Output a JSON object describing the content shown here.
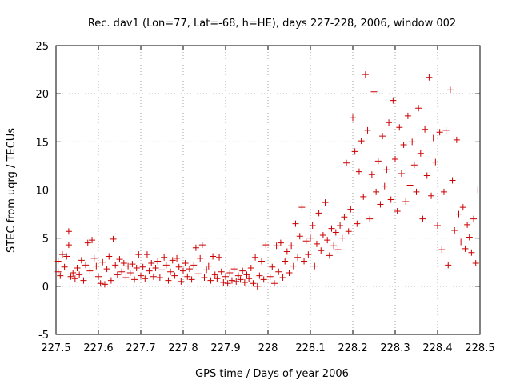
{
  "chart_data": {
    "type": "scatter",
    "title": "Rec. dav1 (Lon=77, Lat=-68, h=HE), days 227-228, 2006, window 002",
    "xlabel": "GPS time / Days of year 2006",
    "ylabel": "STEC from uqrg / TECUs",
    "xlim": [
      227.5,
      228.5
    ],
    "ylim": [
      -5,
      25
    ],
    "xticks": [
      227.5,
      227.6,
      227.7,
      227.8,
      227.9,
      228,
      228.1,
      228.2,
      228.3,
      228.4,
      228.5
    ],
    "xtick_labels": [
      "227.5",
      "227.6",
      "227.7",
      "227.8",
      "227.9",
      "228",
      "228.1",
      "228.2",
      "228.3",
      "228.4",
      "228.5"
    ],
    "yticks": [
      -5,
      0,
      5,
      10,
      15,
      20,
      25
    ],
    "ytick_labels": [
      "-5",
      "0",
      "5",
      "10",
      "15",
      "20",
      "25"
    ],
    "grid": true,
    "marker": "plus",
    "color": "#cc0000",
    "points": [
      [
        227.505,
        1.5
      ],
      [
        227.505,
        2.6
      ],
      [
        227.51,
        1.1
      ],
      [
        227.515,
        3.3
      ],
      [
        227.52,
        2.0
      ],
      [
        227.525,
        3.1
      ],
      [
        227.53,
        5.7
      ],
      [
        227.53,
        4.3
      ],
      [
        227.535,
        1.0
      ],
      [
        227.54,
        1.4
      ],
      [
        227.545,
        0.8
      ],
      [
        227.55,
        1.9
      ],
      [
        227.555,
        1.2
      ],
      [
        227.56,
        2.7
      ],
      [
        227.565,
        0.6
      ],
      [
        227.57,
        2.2
      ],
      [
        227.575,
        4.5
      ],
      [
        227.58,
        1.6
      ],
      [
        227.585,
        4.8
      ],
      [
        227.59,
        2.9
      ],
      [
        227.595,
        2.1
      ],
      [
        227.6,
        1.0
      ],
      [
        227.605,
        0.3
      ],
      [
        227.61,
        2.5
      ],
      [
        227.615,
        0.2
      ],
      [
        227.62,
        1.8
      ],
      [
        227.625,
        3.1
      ],
      [
        227.63,
        0.6
      ],
      [
        227.635,
        4.9
      ],
      [
        227.64,
        2.2
      ],
      [
        227.645,
        1.2
      ],
      [
        227.65,
        2.8
      ],
      [
        227.655,
        1.5
      ],
      [
        227.66,
        2.4
      ],
      [
        227.665,
        0.9
      ],
      [
        227.67,
        2.1
      ],
      [
        227.675,
        1.4
      ],
      [
        227.68,
        2.3
      ],
      [
        227.685,
        0.7
      ],
      [
        227.69,
        1.9
      ],
      [
        227.695,
        3.3
      ],
      [
        227.7,
        1.1
      ],
      [
        227.705,
        2.0
      ],
      [
        227.71,
        0.8
      ],
      [
        227.715,
        3.3
      ],
      [
        227.72,
        1.6
      ],
      [
        227.725,
        2.4
      ],
      [
        227.73,
        1.0
      ],
      [
        227.735,
        1.9
      ],
      [
        227.74,
        2.6
      ],
      [
        227.745,
        0.9
      ],
      [
        227.75,
        1.7
      ],
      [
        227.755,
        3.0
      ],
      [
        227.76,
        2.2
      ],
      [
        227.765,
        0.6
      ],
      [
        227.77,
        1.5
      ],
      [
        227.775,
        2.7
      ],
      [
        227.78,
        1.1
      ],
      [
        227.785,
        2.9
      ],
      [
        227.79,
        2.0
      ],
      [
        227.795,
        0.5
      ],
      [
        227.8,
        1.6
      ],
      [
        227.805,
        2.4
      ],
      [
        227.81,
        1.0
      ],
      [
        227.815,
        1.8
      ],
      [
        227.82,
        0.7
      ],
      [
        227.825,
        2.2
      ],
      [
        227.83,
        4.0
      ],
      [
        227.835,
        1.3
      ],
      [
        227.84,
        2.9
      ],
      [
        227.845,
        4.3
      ],
      [
        227.85,
        0.9
      ],
      [
        227.855,
        1.7
      ],
      [
        227.86,
        2.1
      ],
      [
        227.865,
        0.6
      ],
      [
        227.87,
        3.1
      ],
      [
        227.875,
        1.2
      ],
      [
        227.88,
        0.8
      ],
      [
        227.885,
        3.0
      ],
      [
        227.89,
        1.5
      ],
      [
        227.895,
        0.4
      ],
      [
        227.9,
        1.0
      ],
      [
        227.905,
        0.3
      ],
      [
        227.91,
        1.4
      ],
      [
        227.915,
        0.6
      ],
      [
        227.92,
        1.8
      ],
      [
        227.925,
        0.5
      ],
      [
        227.93,
        1.1
      ],
      [
        227.935,
        0.7
      ],
      [
        227.94,
        1.6
      ],
      [
        227.945,
        0.4
      ],
      [
        227.95,
        1.2
      ],
      [
        227.955,
        0.8
      ],
      [
        227.96,
        1.9
      ],
      [
        227.965,
        0.3
      ],
      [
        227.97,
        3.0
      ],
      [
        227.975,
        0.0
      ],
      [
        227.98,
        1.1
      ],
      [
        227.985,
        2.6
      ],
      [
        227.99,
        0.7
      ],
      [
        227.995,
        4.3
      ],
      [
        228.005,
        1.0
      ],
      [
        228.01,
        2.0
      ],
      [
        228.015,
        0.3
      ],
      [
        228.02,
        4.2
      ],
      [
        228.025,
        1.5
      ],
      [
        228.03,
        4.5
      ],
      [
        228.035,
        0.9
      ],
      [
        228.04,
        2.6
      ],
      [
        228.045,
        3.6
      ],
      [
        228.05,
        1.4
      ],
      [
        228.055,
        4.2
      ],
      [
        228.06,
        2.1
      ],
      [
        228.065,
        6.5
      ],
      [
        228.07,
        3.0
      ],
      [
        228.075,
        5.2
      ],
      [
        228.08,
        8.2
      ],
      [
        228.085,
        2.6
      ],
      [
        228.09,
        4.7
      ],
      [
        228.095,
        3.3
      ],
      [
        228.1,
        5.0
      ],
      [
        228.105,
        6.3
      ],
      [
        228.11,
        2.1
      ],
      [
        228.115,
        4.4
      ],
      [
        228.12,
        7.6
      ],
      [
        228.125,
        3.7
      ],
      [
        228.13,
        5.3
      ],
      [
        228.135,
        8.7
      ],
      [
        228.14,
        4.8
      ],
      [
        228.145,
        3.2
      ],
      [
        228.15,
        6.0
      ],
      [
        228.155,
        4.2
      ],
      [
        228.16,
        5.6
      ],
      [
        228.165,
        3.8
      ],
      [
        228.17,
        6.3
      ],
      [
        228.175,
        5.0
      ],
      [
        228.18,
        7.2
      ],
      [
        228.185,
        12.8
      ],
      [
        228.19,
        5.7
      ],
      [
        228.195,
        8.0
      ],
      [
        228.2,
        17.5
      ],
      [
        228.205,
        14.0
      ],
      [
        228.21,
        6.5
      ],
      [
        228.215,
        11.9
      ],
      [
        228.22,
        15.1
      ],
      [
        228.225,
        9.3
      ],
      [
        228.23,
        22.0
      ],
      [
        228.235,
        16.2
      ],
      [
        228.24,
        7.0
      ],
      [
        228.245,
        11.6
      ],
      [
        228.25,
        20.2
      ],
      [
        228.255,
        9.8
      ],
      [
        228.26,
        13.0
      ],
      [
        228.265,
        8.5
      ],
      [
        228.27,
        15.6
      ],
      [
        228.275,
        10.4
      ],
      [
        228.28,
        12.1
      ],
      [
        228.285,
        17.0
      ],
      [
        228.29,
        9.0
      ],
      [
        228.295,
        19.3
      ],
      [
        228.3,
        13.2
      ],
      [
        228.305,
        7.8
      ],
      [
        228.31,
        16.5
      ],
      [
        228.315,
        11.7
      ],
      [
        228.32,
        14.7
      ],
      [
        228.325,
        8.8
      ],
      [
        228.33,
        17.7
      ],
      [
        228.335,
        10.5
      ],
      [
        228.34,
        15.0
      ],
      [
        228.345,
        12.6
      ],
      [
        228.35,
        9.8
      ],
      [
        228.355,
        18.5
      ],
      [
        228.36,
        13.8
      ],
      [
        228.365,
        7.0
      ],
      [
        228.37,
        16.3
      ],
      [
        228.375,
        11.5
      ],
      [
        228.38,
        21.7
      ],
      [
        228.385,
        9.4
      ],
      [
        228.39,
        15.4
      ],
      [
        228.395,
        12.9
      ],
      [
        228.4,
        6.3
      ],
      [
        228.405,
        16.0
      ],
      [
        228.41,
        3.8
      ],
      [
        228.415,
        9.8
      ],
      [
        228.42,
        16.2
      ],
      [
        228.425,
        2.2
      ],
      [
        228.43,
        20.4
      ],
      [
        228.435,
        11.0
      ],
      [
        228.44,
        5.8
      ],
      [
        228.445,
        15.2
      ],
      [
        228.45,
        7.5
      ],
      [
        228.455,
        4.6
      ],
      [
        228.46,
        8.2
      ],
      [
        228.465,
        3.9
      ],
      [
        228.47,
        6.4
      ],
      [
        228.475,
        5.1
      ],
      [
        228.48,
        3.5
      ],
      [
        228.485,
        7.0
      ],
      [
        228.49,
        2.4
      ],
      [
        228.495,
        10.0
      ]
    ]
  }
}
